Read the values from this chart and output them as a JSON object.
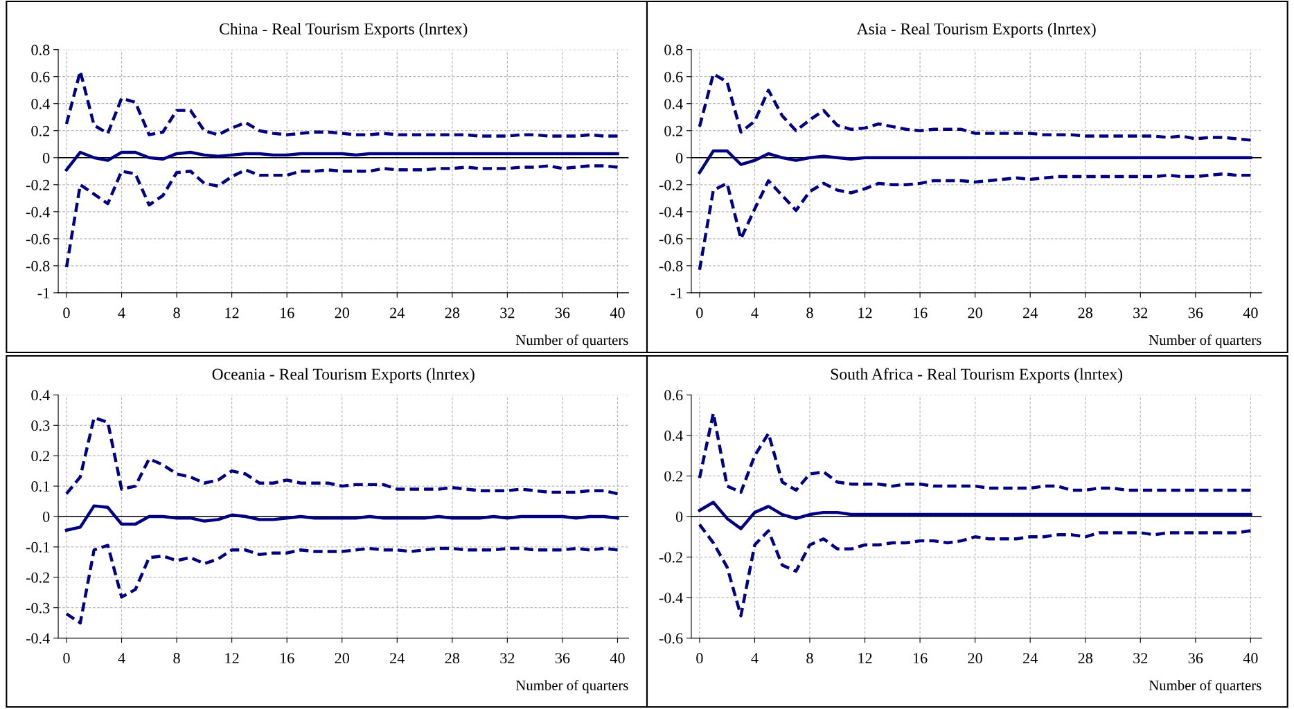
{
  "chart_data": [
    {
      "type": "line",
      "title": "China - Real Tourism Exports (lnrtex)",
      "xlabel": "Number of quarters",
      "x": [
        0,
        1,
        2,
        3,
        4,
        5,
        6,
        7,
        8,
        9,
        10,
        11,
        12,
        13,
        14,
        15,
        16,
        17,
        18,
        19,
        20,
        21,
        22,
        23,
        24,
        25,
        26,
        27,
        28,
        29,
        30,
        31,
        32,
        33,
        34,
        35,
        36,
        37,
        38,
        39,
        40
      ],
      "xlim": [
        -0.6,
        40.8
      ],
      "xticks": [
        0,
        4,
        8,
        12,
        16,
        20,
        24,
        28,
        32,
        36,
        40
      ],
      "ylim": [
        -1,
        0.8
      ],
      "yticks": [
        -1,
        -0.8,
        -0.6,
        -0.4,
        -0.2,
        0,
        0.2,
        0.4,
        0.6,
        0.8
      ],
      "grid": true,
      "legend": false,
      "ref_lines": [
        {
          "axis": "y",
          "value": 0,
          "color": "#000000",
          "line_style": "solid"
        }
      ],
      "series": [
        {
          "color": "#000080",
          "line_style": "dashed",
          "values": [
            0.25,
            0.64,
            0.24,
            0.18,
            0.44,
            0.41,
            0.17,
            0.19,
            0.35,
            0.35,
            0.2,
            0.17,
            0.22,
            0.26,
            0.2,
            0.18,
            0.17,
            0.18,
            0.19,
            0.19,
            0.18,
            0.17,
            0.17,
            0.18,
            0.17,
            0.17,
            0.17,
            0.17,
            0.17,
            0.17,
            0.16,
            0.16,
            0.16,
            0.17,
            0.17,
            0.16,
            0.16,
            0.16,
            0.17,
            0.16,
            0.16
          ]
        },
        {
          "color": "#000080",
          "line_style": "solid",
          "values": [
            -0.09,
            0.04,
            0.0,
            -0.02,
            0.04,
            0.04,
            0.0,
            -0.01,
            0.03,
            0.04,
            0.02,
            0.01,
            0.02,
            0.03,
            0.03,
            0.02,
            0.02,
            0.03,
            0.03,
            0.03,
            0.03,
            0.02,
            0.03,
            0.03,
            0.03,
            0.03,
            0.03,
            0.03,
            0.03,
            0.03,
            0.03,
            0.03,
            0.03,
            0.03,
            0.03,
            0.03,
            0.03,
            0.03,
            0.03,
            0.03,
            0.03
          ]
        },
        {
          "color": "#000080",
          "line_style": "dashed",
          "values": [
            -0.81,
            -0.2,
            -0.27,
            -0.34,
            -0.1,
            -0.12,
            -0.35,
            -0.28,
            -0.11,
            -0.1,
            -0.19,
            -0.21,
            -0.14,
            -0.09,
            -0.13,
            -0.13,
            -0.13,
            -0.1,
            -0.1,
            -0.09,
            -0.1,
            -0.1,
            -0.1,
            -0.08,
            -0.09,
            -0.09,
            -0.09,
            -0.08,
            -0.08,
            -0.07,
            -0.08,
            -0.08,
            -0.08,
            -0.07,
            -0.07,
            -0.06,
            -0.08,
            -0.07,
            -0.06,
            -0.06,
            -0.07
          ]
        }
      ]
    },
    {
      "type": "line",
      "title": "Asia - Real Tourism Exports (lnrtex)",
      "xlabel": "Number of quarters",
      "x": [
        0,
        1,
        2,
        3,
        4,
        5,
        6,
        7,
        8,
        9,
        10,
        11,
        12,
        13,
        14,
        15,
        16,
        17,
        18,
        19,
        20,
        21,
        22,
        23,
        24,
        25,
        26,
        27,
        28,
        29,
        30,
        31,
        32,
        33,
        34,
        35,
        36,
        37,
        38,
        39,
        40
      ],
      "xlim": [
        -0.6,
        40.8
      ],
      "xticks": [
        0,
        4,
        8,
        12,
        16,
        20,
        24,
        28,
        32,
        36,
        40
      ],
      "ylim": [
        -1,
        0.8
      ],
      "yticks": [
        -1,
        -0.8,
        -0.6,
        -0.4,
        -0.2,
        0,
        0.2,
        0.4,
        0.6,
        0.8
      ],
      "grid": true,
      "legend": false,
      "ref_lines": [
        {
          "axis": "y",
          "value": 0,
          "color": "#000000",
          "line_style": "solid"
        }
      ],
      "series": [
        {
          "color": "#000080",
          "line_style": "dashed",
          "values": [
            0.23,
            0.62,
            0.56,
            0.19,
            0.27,
            0.5,
            0.31,
            0.2,
            0.28,
            0.35,
            0.24,
            0.21,
            0.22,
            0.25,
            0.23,
            0.21,
            0.2,
            0.21,
            0.21,
            0.21,
            0.18,
            0.18,
            0.18,
            0.18,
            0.18,
            0.17,
            0.17,
            0.17,
            0.16,
            0.16,
            0.16,
            0.16,
            0.16,
            0.16,
            0.15,
            0.16,
            0.14,
            0.15,
            0.15,
            0.14,
            0.13
          ]
        },
        {
          "color": "#000080",
          "line_style": "solid",
          "values": [
            -0.11,
            0.05,
            0.05,
            -0.05,
            -0.02,
            0.03,
            0.0,
            -0.02,
            0.0,
            0.01,
            0.0,
            -0.01,
            0,
            0,
            0,
            0,
            0,
            0,
            0,
            0,
            0,
            0,
            0,
            0,
            0,
            0,
            0,
            0,
            0,
            0,
            0,
            0,
            0,
            0,
            0,
            0,
            0,
            0,
            0,
            0,
            0
          ]
        },
        {
          "color": "#000080",
          "line_style": "dashed",
          "values": [
            -0.83,
            -0.24,
            -0.19,
            -0.6,
            -0.38,
            -0.17,
            -0.28,
            -0.39,
            -0.25,
            -0.19,
            -0.24,
            -0.26,
            -0.23,
            -0.19,
            -0.2,
            -0.2,
            -0.19,
            -0.17,
            -0.17,
            -0.17,
            -0.18,
            -0.17,
            -0.16,
            -0.15,
            -0.16,
            -0.15,
            -0.14,
            -0.14,
            -0.14,
            -0.14,
            -0.14,
            -0.14,
            -0.14,
            -0.14,
            -0.13,
            -0.14,
            -0.14,
            -0.13,
            -0.12,
            -0.13,
            -0.13
          ]
        }
      ]
    },
    {
      "type": "line",
      "title": "Oceania - Real Tourism Exports (lnrtex)",
      "xlabel": "Number of quarters",
      "x": [
        0,
        1,
        2,
        3,
        4,
        5,
        6,
        7,
        8,
        9,
        10,
        11,
        12,
        13,
        14,
        15,
        16,
        17,
        18,
        19,
        20,
        21,
        22,
        23,
        24,
        25,
        26,
        27,
        28,
        29,
        30,
        31,
        32,
        33,
        34,
        35,
        36,
        37,
        38,
        39,
        40
      ],
      "xlim": [
        -0.6,
        40.8
      ],
      "xticks": [
        0,
        4,
        8,
        12,
        16,
        20,
        24,
        28,
        32,
        36,
        40
      ],
      "ylim": [
        -0.4,
        0.4
      ],
      "yticks": [
        -0.4,
        -0.3,
        -0.2,
        -0.1,
        0,
        0.1,
        0.2,
        0.3,
        0.4
      ],
      "grid": true,
      "legend": false,
      "ref_lines": [
        {
          "axis": "y",
          "value": 0,
          "color": "#000000",
          "line_style": "solid"
        }
      ],
      "series": [
        {
          "color": "#000080",
          "line_style": "dashed",
          "values": [
            0.075,
            0.13,
            0.325,
            0.31,
            0.09,
            0.1,
            0.19,
            0.17,
            0.14,
            0.13,
            0.11,
            0.12,
            0.15,
            0.14,
            0.11,
            0.11,
            0.12,
            0.11,
            0.11,
            0.11,
            0.1,
            0.105,
            0.105,
            0.105,
            0.09,
            0.09,
            0.09,
            0.09,
            0.095,
            0.09,
            0.085,
            0.085,
            0.085,
            0.09,
            0.085,
            0.08,
            0.08,
            0.08,
            0.085,
            0.085,
            0.075
          ]
        },
        {
          "color": "#000080",
          "line_style": "solid",
          "values": [
            -0.045,
            -0.035,
            0.035,
            0.03,
            -0.025,
            -0.025,
            0.0,
            0.0,
            -0.005,
            -0.005,
            -0.015,
            -0.01,
            0.005,
            0.0,
            -0.01,
            -0.01,
            -0.005,
            0.0,
            -0.005,
            -0.005,
            -0.005,
            -0.005,
            0.0,
            -0.005,
            -0.005,
            -0.005,
            -0.005,
            0.0,
            -0.005,
            -0.005,
            -0.005,
            0.0,
            -0.005,
            0.0,
            0.0,
            0.0,
            0.0,
            -0.005,
            0.0,
            0.0,
            -0.005
          ]
        },
        {
          "color": "#000080",
          "line_style": "dashed",
          "values": [
            -0.32,
            -0.35,
            -0.11,
            -0.095,
            -0.265,
            -0.24,
            -0.135,
            -0.13,
            -0.145,
            -0.135,
            -0.155,
            -0.14,
            -0.11,
            -0.11,
            -0.125,
            -0.12,
            -0.12,
            -0.11,
            -0.115,
            -0.115,
            -0.115,
            -0.11,
            -0.105,
            -0.11,
            -0.11,
            -0.115,
            -0.11,
            -0.105,
            -0.105,
            -0.11,
            -0.11,
            -0.11,
            -0.105,
            -0.105,
            -0.11,
            -0.11,
            -0.11,
            -0.105,
            -0.11,
            -0.105,
            -0.11
          ]
        }
      ]
    },
    {
      "type": "line",
      "title": "South Africa - Real Tourism Exports (lnrtex)",
      "xlabel": "Number of quarters",
      "x": [
        0,
        1,
        2,
        3,
        4,
        5,
        6,
        7,
        8,
        9,
        10,
        11,
        12,
        13,
        14,
        15,
        16,
        17,
        18,
        19,
        20,
        21,
        22,
        23,
        24,
        25,
        26,
        27,
        28,
        29,
        30,
        31,
        32,
        33,
        34,
        35,
        36,
        37,
        38,
        39,
        40
      ],
      "xlim": [
        -0.6,
        40.8
      ],
      "xticks": [
        0,
        4,
        8,
        12,
        16,
        20,
        24,
        28,
        32,
        36,
        40
      ],
      "ylim": [
        -0.6,
        0.6
      ],
      "yticks": [
        -0.6,
        -0.4,
        -0.2,
        0,
        0.2,
        0.4,
        0.6
      ],
      "grid": true,
      "legend": false,
      "ref_lines": [
        {
          "axis": "y",
          "value": 0,
          "color": "#000000",
          "line_style": "solid"
        }
      ],
      "series": [
        {
          "color": "#000080",
          "line_style": "dashed",
          "values": [
            0.19,
            0.51,
            0.15,
            0.12,
            0.3,
            0.41,
            0.17,
            0.13,
            0.21,
            0.22,
            0.17,
            0.16,
            0.16,
            0.16,
            0.15,
            0.16,
            0.16,
            0.15,
            0.15,
            0.15,
            0.15,
            0.14,
            0.14,
            0.14,
            0.14,
            0.15,
            0.15,
            0.13,
            0.13,
            0.14,
            0.14,
            0.13,
            0.13,
            0.13,
            0.13,
            0.13,
            0.13,
            0.13,
            0.13,
            0.13,
            0.13
          ]
        },
        {
          "color": "#000080",
          "line_style": "solid",
          "values": [
            0.03,
            0.07,
            -0.01,
            -0.06,
            0.02,
            0.05,
            0.01,
            -0.01,
            0.01,
            0.02,
            0.02,
            0.01,
            0.01,
            0.01,
            0.01,
            0.01,
            0.01,
            0.01,
            0.01,
            0.01,
            0.01,
            0.01,
            0.01,
            0.01,
            0.01,
            0.01,
            0.01,
            0.01,
            0.01,
            0.01,
            0.01,
            0.01,
            0.01,
            0.01,
            0.01,
            0.01,
            0.01,
            0.01,
            0.01,
            0.01,
            0.01
          ]
        },
        {
          "color": "#000080",
          "line_style": "dashed",
          "values": [
            -0.04,
            -0.13,
            -0.25,
            -0.49,
            -0.14,
            -0.07,
            -0.24,
            -0.27,
            -0.14,
            -0.11,
            -0.16,
            -0.16,
            -0.14,
            -0.14,
            -0.13,
            -0.13,
            -0.12,
            -0.12,
            -0.13,
            -0.12,
            -0.1,
            -0.11,
            -0.11,
            -0.11,
            -0.1,
            -0.1,
            -0.09,
            -0.09,
            -0.1,
            -0.08,
            -0.08,
            -0.08,
            -0.08,
            -0.09,
            -0.08,
            -0.08,
            -0.08,
            -0.08,
            -0.08,
            -0.08,
            -0.07
          ]
        }
      ]
    }
  ]
}
